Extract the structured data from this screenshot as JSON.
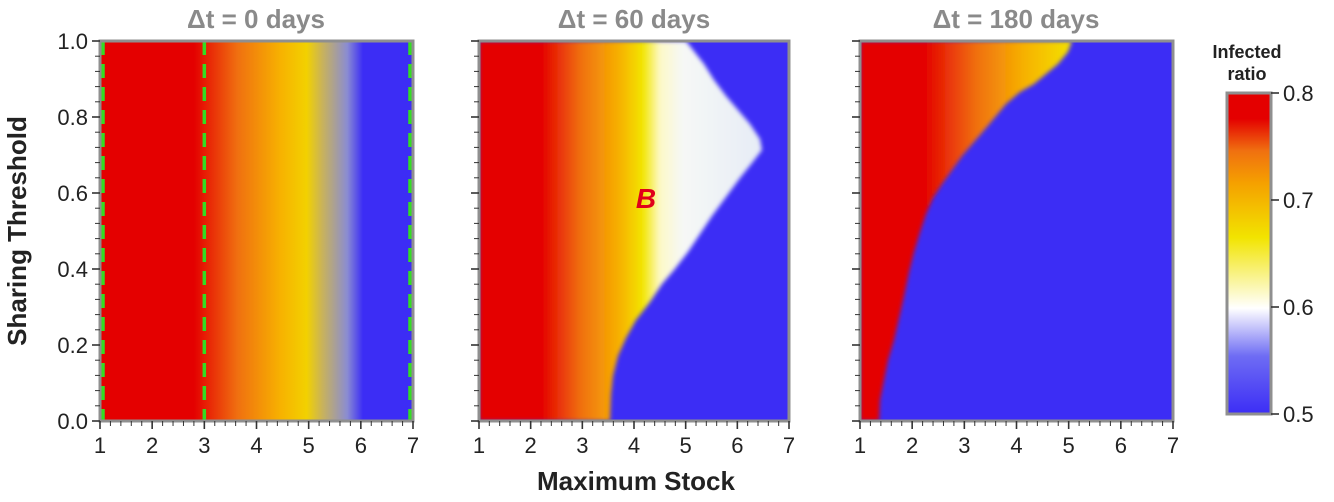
{
  "chart_data": {
    "type": "heatmap",
    "xlabel": "Maximum Stock",
    "ylabel": "Sharing Threshold",
    "xlim": [
      1,
      7
    ],
    "ylim": [
      0.0,
      1.0
    ],
    "xticks": [
      "1",
      "2",
      "3",
      "4",
      "5",
      "6",
      "7"
    ],
    "yticks": [
      "0.0",
      "0.2",
      "0.4",
      "0.6",
      "0.8",
      "1.0"
    ],
    "panels": [
      {
        "title": "Δt = 0 days",
        "dashed_lines_x": [
          1,
          3,
          7
        ],
        "dashed_line_color": "#33dd22"
      },
      {
        "title": "Δt = 60 days",
        "annotation": {
          "text": "B",
          "x": 4.3,
          "y": 0.58
        }
      },
      {
        "title": "Δt = 180 days"
      }
    ],
    "colorbar": {
      "title_lines": [
        "Infected",
        "ratio"
      ],
      "min": 0.5,
      "max": 0.8,
      "ticks": [
        "0.5",
        "0.6",
        "0.7",
        "0.8"
      ],
      "colors": {
        "low": "#3c2df5",
        "mid": "#ffffff",
        "yellow": "#f2e400",
        "orange": "#f07010",
        "high": "#e40000"
      }
    }
  }
}
